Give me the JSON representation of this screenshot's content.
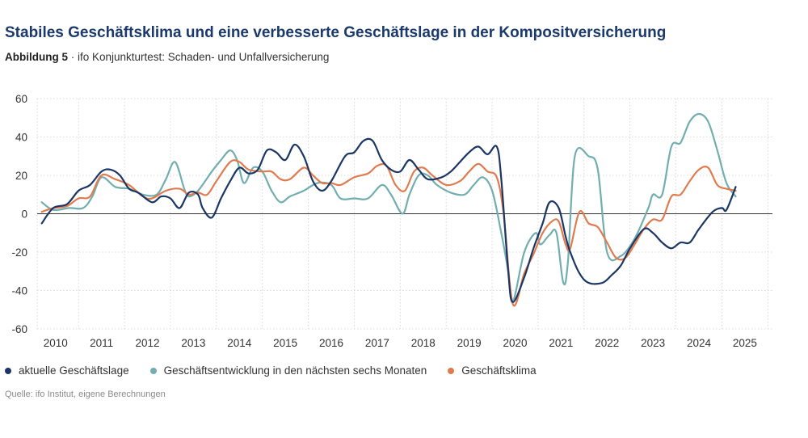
{
  "header": {
    "title": "Stabiles Geschäftsklima und eine verbesserte Geschäftslage in der Kompositversicherung",
    "subtitle_label": "Abbildung 5",
    "subtitle_text": " · ifo Konjunkturtest: Schaden- und Unfallversicherung"
  },
  "source": "Quelle: ifo Institut, eigene Berechnungen",
  "chart_data": {
    "type": "line",
    "title": "Stabiles Geschäftsklima und eine verbesserte Geschäftslage in der Kompositversicherung",
    "xlabel": "",
    "ylabel": "",
    "xlim": [
      2009.6,
      2025.6
    ],
    "ylim": [
      -60,
      60
    ],
    "x_ticks": [
      2010,
      2011,
      2012,
      2013,
      2014,
      2015,
      2016,
      2017,
      2018,
      2019,
      2020,
      2021,
      2022,
      2023,
      2024,
      2025
    ],
    "y_ticks": [
      -60,
      -40,
      -20,
      0,
      20,
      40,
      60
    ],
    "grid": true,
    "legend_position": "bottom",
    "series": [
      {
        "name": "aktuelle Geschäftslage",
        "color": "#1c3664",
        "points": [
          [
            2009.7,
            -5
          ],
          [
            2009.95,
            3
          ],
          [
            2010.25,
            5
          ],
          [
            2010.5,
            12
          ],
          [
            2010.75,
            15
          ],
          [
            2011.0,
            22
          ],
          [
            2011.2,
            23
          ],
          [
            2011.4,
            20
          ],
          [
            2011.6,
            13
          ],
          [
            2011.8,
            11
          ],
          [
            2012.1,
            6
          ],
          [
            2012.3,
            9
          ],
          [
            2012.5,
            8
          ],
          [
            2012.7,
            3
          ],
          [
            2012.9,
            11
          ],
          [
            2013.1,
            10
          ],
          [
            2013.2,
            3
          ],
          [
            2013.4,
            -2
          ],
          [
            2013.6,
            8
          ],
          [
            2013.8,
            17
          ],
          [
            2014.0,
            24
          ],
          [
            2014.2,
            21
          ],
          [
            2014.4,
            23
          ],
          [
            2014.6,
            33
          ],
          [
            2014.8,
            32
          ],
          [
            2015.0,
            28
          ],
          [
            2015.2,
            36
          ],
          [
            2015.4,
            30
          ],
          [
            2015.6,
            17
          ],
          [
            2015.8,
            12
          ],
          [
            2016.0,
            17
          ],
          [
            2016.3,
            30
          ],
          [
            2016.5,
            32
          ],
          [
            2016.7,
            38
          ],
          [
            2016.9,
            38
          ],
          [
            2017.1,
            28
          ],
          [
            2017.3,
            23
          ],
          [
            2017.5,
            22
          ],
          [
            2017.7,
            28
          ],
          [
            2017.9,
            23
          ],
          [
            2018.1,
            18
          ],
          [
            2018.4,
            19
          ],
          [
            2018.6,
            22
          ],
          [
            2018.8,
            27
          ],
          [
            2019.0,
            32
          ],
          [
            2019.2,
            35
          ],
          [
            2019.4,
            31
          ],
          [
            2019.6,
            35
          ],
          [
            2019.7,
            18
          ],
          [
            2019.85,
            -30
          ],
          [
            2019.95,
            -46
          ],
          [
            2020.2,
            -33
          ],
          [
            2020.4,
            -18
          ],
          [
            2020.6,
            -5
          ],
          [
            2020.75,
            6
          ],
          [
            2020.95,
            3
          ],
          [
            2021.1,
            -12
          ],
          [
            2021.2,
            -20
          ],
          [
            2021.4,
            -31
          ],
          [
            2021.6,
            -36
          ],
          [
            2021.9,
            -36
          ],
          [
            2022.1,
            -32
          ],
          [
            2022.3,
            -27
          ],
          [
            2022.5,
            -18
          ],
          [
            2022.8,
            -8
          ],
          [
            2023.0,
            -10
          ],
          [
            2023.2,
            -15
          ],
          [
            2023.4,
            -18
          ],
          [
            2023.6,
            -15
          ],
          [
            2023.8,
            -15
          ],
          [
            2024.0,
            -8
          ],
          [
            2024.3,
            1
          ],
          [
            2024.5,
            3
          ],
          [
            2024.6,
            2
          ],
          [
            2024.8,
            14
          ]
        ]
      },
      {
        "name": "Geschäftsentwicklung in den nächsten sechs Monaten",
        "color": "#72aeaf",
        "points": [
          [
            2009.7,
            6
          ],
          [
            2009.95,
            2
          ],
          [
            2010.3,
            3
          ],
          [
            2010.6,
            3
          ],
          [
            2010.8,
            9
          ],
          [
            2011.0,
            19
          ],
          [
            2011.3,
            14
          ],
          [
            2011.6,
            13
          ],
          [
            2011.9,
            10
          ],
          [
            2012.2,
            10
          ],
          [
            2012.4,
            18
          ],
          [
            2012.6,
            27
          ],
          [
            2012.8,
            13
          ],
          [
            2012.9,
            9
          ],
          [
            2013.1,
            12
          ],
          [
            2013.4,
            22
          ],
          [
            2013.6,
            28
          ],
          [
            2013.8,
            33
          ],
          [
            2013.95,
            28
          ],
          [
            2014.1,
            16
          ],
          [
            2014.3,
            24
          ],
          [
            2014.5,
            22
          ],
          [
            2014.7,
            12
          ],
          [
            2014.9,
            6
          ],
          [
            2015.1,
            9
          ],
          [
            2015.4,
            12
          ],
          [
            2015.7,
            16
          ],
          [
            2016.0,
            15
          ],
          [
            2016.2,
            8
          ],
          [
            2016.5,
            8
          ],
          [
            2016.8,
            8
          ],
          [
            2017.1,
            15
          ],
          [
            2017.3,
            10
          ],
          [
            2017.55,
            0
          ],
          [
            2017.7,
            10
          ],
          [
            2017.9,
            20
          ],
          [
            2018.1,
            20
          ],
          [
            2018.3,
            15
          ],
          [
            2018.6,
            11
          ],
          [
            2018.9,
            10
          ],
          [
            2019.1,
            15
          ],
          [
            2019.3,
            19
          ],
          [
            2019.5,
            12
          ],
          [
            2019.7,
            -10
          ],
          [
            2019.85,
            -30
          ],
          [
            2019.95,
            -46
          ],
          [
            2020.2,
            -20
          ],
          [
            2020.45,
            -10
          ],
          [
            2020.55,
            -16
          ],
          [
            2020.75,
            -11
          ],
          [
            2020.9,
            -10
          ],
          [
            2021.05,
            -36
          ],
          [
            2021.15,
            -25
          ],
          [
            2021.3,
            30
          ],
          [
            2021.6,
            30
          ],
          [
            2021.8,
            23
          ],
          [
            2022.0,
            -20
          ],
          [
            2022.3,
            -22
          ],
          [
            2022.6,
            -13
          ],
          [
            2022.9,
            3
          ],
          [
            2023.0,
            10
          ],
          [
            2023.2,
            10
          ],
          [
            2023.4,
            35
          ],
          [
            2023.6,
            37
          ],
          [
            2023.8,
            48
          ],
          [
            2024.0,
            52
          ],
          [
            2024.2,
            48
          ],
          [
            2024.4,
            33
          ],
          [
            2024.6,
            16
          ],
          [
            2024.8,
            9
          ]
        ]
      },
      {
        "name": "Geschäftsklima",
        "color": "#e07b4f",
        "points": [
          [
            2009.7,
            1
          ],
          [
            2009.95,
            3
          ],
          [
            2010.25,
            4
          ],
          [
            2010.5,
            8
          ],
          [
            2010.75,
            9
          ],
          [
            2011.0,
            20
          ],
          [
            2011.3,
            18
          ],
          [
            2011.6,
            15
          ],
          [
            2011.9,
            9
          ],
          [
            2012.1,
            8
          ],
          [
            2012.4,
            12
          ],
          [
            2012.7,
            13
          ],
          [
            2012.9,
            10
          ],
          [
            2013.1,
            11
          ],
          [
            2013.3,
            10
          ],
          [
            2013.5,
            17
          ],
          [
            2013.8,
            27
          ],
          [
            2014.0,
            27
          ],
          [
            2014.2,
            23
          ],
          [
            2014.5,
            22
          ],
          [
            2014.7,
            22
          ],
          [
            2014.9,
            18
          ],
          [
            2015.1,
            18
          ],
          [
            2015.4,
            24
          ],
          [
            2015.6,
            20
          ],
          [
            2015.8,
            16
          ],
          [
            2016.0,
            16
          ],
          [
            2016.2,
            15
          ],
          [
            2016.5,
            19
          ],
          [
            2016.8,
            21
          ],
          [
            2017.0,
            25
          ],
          [
            2017.2,
            25
          ],
          [
            2017.4,
            15
          ],
          [
            2017.6,
            12
          ],
          [
            2017.8,
            22
          ],
          [
            2018.0,
            24
          ],
          [
            2018.2,
            20
          ],
          [
            2018.5,
            15
          ],
          [
            2018.8,
            17
          ],
          [
            2019.0,
            22
          ],
          [
            2019.2,
            26
          ],
          [
            2019.4,
            22
          ],
          [
            2019.6,
            19
          ],
          [
            2019.75,
            0
          ],
          [
            2019.95,
            -47
          ],
          [
            2020.2,
            -31
          ],
          [
            2020.4,
            -21
          ],
          [
            2020.6,
            -10
          ],
          [
            2020.8,
            -4
          ],
          [
            2020.95,
            -4
          ],
          [
            2021.1,
            -16
          ],
          [
            2021.2,
            -18
          ],
          [
            2021.4,
            1
          ],
          [
            2021.6,
            -5
          ],
          [
            2021.8,
            -7
          ],
          [
            2022.0,
            -15
          ],
          [
            2022.2,
            -23
          ],
          [
            2022.4,
            -23
          ],
          [
            2022.6,
            -16
          ],
          [
            2022.8,
            -8
          ],
          [
            2023.0,
            -3
          ],
          [
            2023.2,
            -3
          ],
          [
            2023.4,
            9
          ],
          [
            2023.6,
            10
          ],
          [
            2023.8,
            17
          ],
          [
            2024.0,
            23
          ],
          [
            2024.2,
            24
          ],
          [
            2024.4,
            15
          ],
          [
            2024.6,
            13
          ],
          [
            2024.8,
            12
          ]
        ]
      }
    ]
  }
}
